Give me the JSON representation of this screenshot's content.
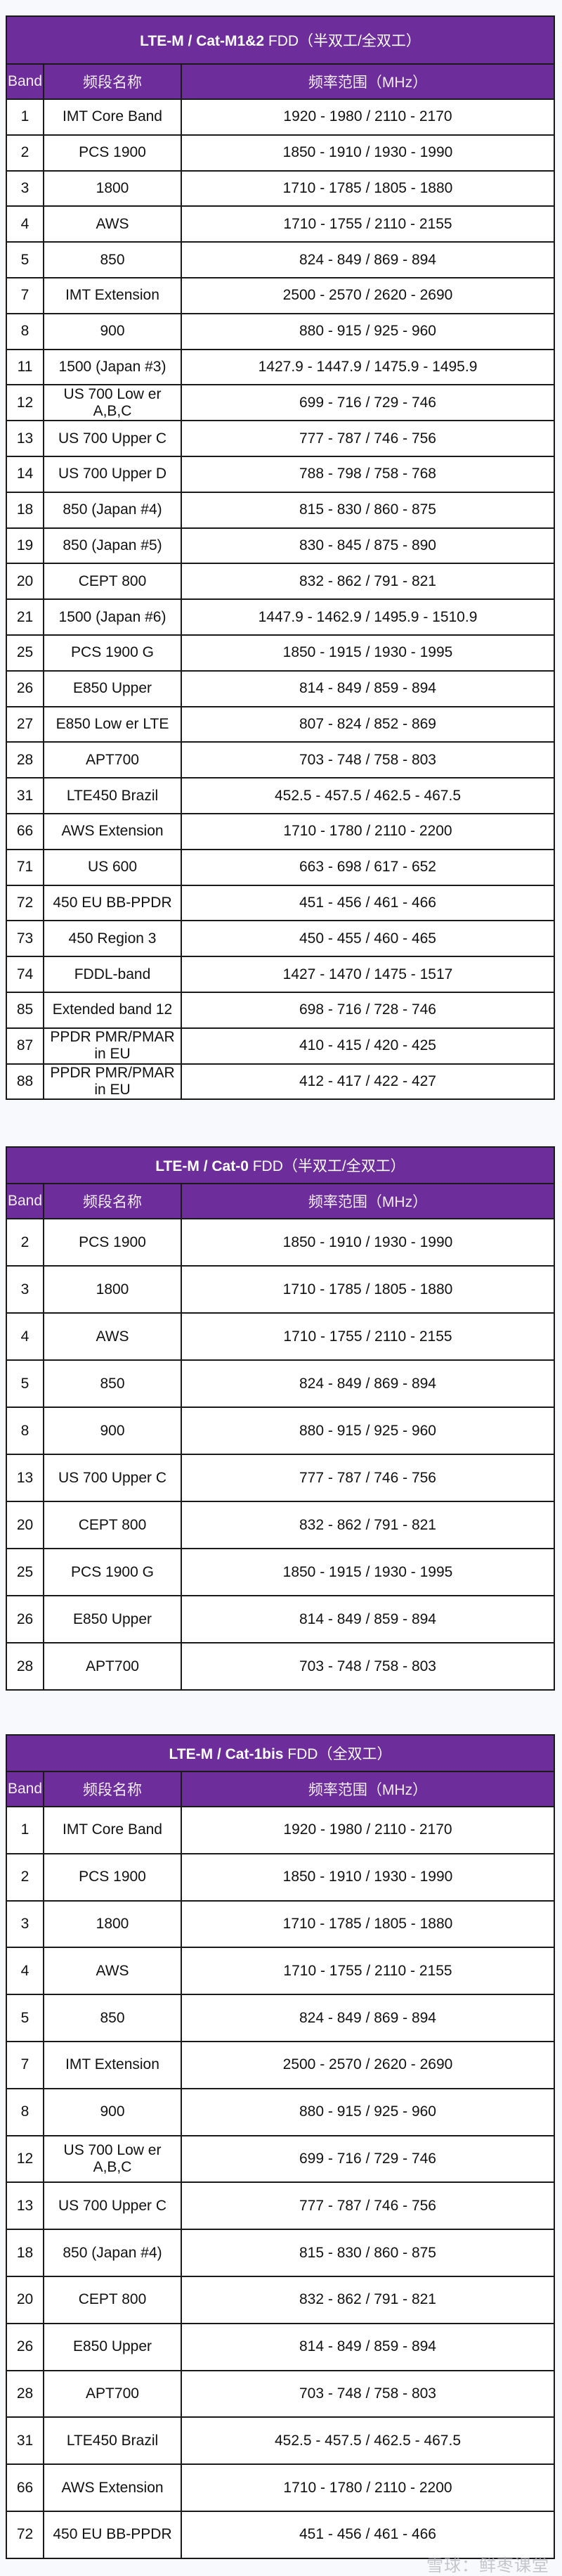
{
  "headers": {
    "band": "Band",
    "name": "频段名称",
    "range": "频率范围（MHz）"
  },
  "tables": [
    {
      "title_bold": "LTE-M / Cat-M1&2",
      "title_rest": " FDD（半双工/全双工）",
      "rows": [
        [
          "1",
          "IMT Core Band",
          "1920 - 1980 / 2110 - 2170"
        ],
        [
          "2",
          "PCS 1900",
          "1850 - 1910 / 1930 - 1990"
        ],
        [
          "3",
          "1800",
          "1710 - 1785 / 1805 - 1880"
        ],
        [
          "4",
          "AWS",
          "1710 - 1755 / 2110 - 2155"
        ],
        [
          "5",
          "850",
          "824 - 849 / 869 - 894"
        ],
        [
          "7",
          "IMT Extension",
          "2500 - 2570 / 2620 - 2690"
        ],
        [
          "8",
          "900",
          "880 - 915 / 925 - 960"
        ],
        [
          "11",
          "1500 (Japan #3)",
          "1427.9 - 1447.9 / 1475.9 - 1495.9"
        ],
        [
          "12",
          "US 700 Low er A,B,C",
          "699 - 716 / 729 - 746"
        ],
        [
          "13",
          "US 700 Upper C",
          "777 - 787 / 746 - 756"
        ],
        [
          "14",
          "US 700 Upper D",
          "788 - 798 / 758 - 768"
        ],
        [
          "18",
          "850 (Japan #4)",
          "815 - 830 / 860 - 875"
        ],
        [
          "19",
          "850 (Japan #5)",
          "830 - 845 / 875 - 890"
        ],
        [
          "20",
          "CEPT 800",
          "832 - 862 / 791 - 821"
        ],
        [
          "21",
          "1500 (Japan #6)",
          "1447.9 - 1462.9 / 1495.9 - 1510.9"
        ],
        [
          "25",
          "PCS 1900 G",
          "1850 - 1915 / 1930 - 1995"
        ],
        [
          "26",
          "E850 Upper",
          "814 - 849 / 859 - 894"
        ],
        [
          "27",
          "E850 Low er LTE",
          "807 - 824 / 852 - 869"
        ],
        [
          "28",
          "APT700",
          "703 - 748 / 758 - 803"
        ],
        [
          "31",
          "LTE450 Brazil",
          "452.5 - 457.5 / 462.5 - 467.5"
        ],
        [
          "66",
          "AWS Extension",
          "1710 - 1780 / 2110 - 2200"
        ],
        [
          "71",
          "US 600",
          "663 - 698 / 617 - 652"
        ],
        [
          "72",
          "450 EU BB-PPDR",
          "451 - 456 / 461 - 466"
        ],
        [
          "73",
          "450 Region 3",
          "450 - 455 / 460 - 465"
        ],
        [
          "74",
          "FDDL-band",
          "1427 - 1470 / 1475 - 1517"
        ],
        [
          "85",
          "Extended band 12",
          "698 - 716 / 728 - 746"
        ],
        [
          "87",
          "PPDR PMR/PMAR in EU",
          "410 - 415 / 420 - 425"
        ],
        [
          "88",
          "PPDR PMR/PMAR in EU",
          "412 - 417 / 422 - 427"
        ]
      ]
    },
    {
      "title_bold": "LTE-M / Cat-0",
      "title_rest": " FDD（半双工/全双工）",
      "rows": [
        [
          "2",
          "PCS 1900",
          "1850 - 1910 / 1930 - 1990"
        ],
        [
          "3",
          "1800",
          "1710 - 1785 / 1805 - 1880"
        ],
        [
          "4",
          "AWS",
          "1710 - 1755 / 2110 - 2155"
        ],
        [
          "5",
          "850",
          "824 - 849 / 869 - 894"
        ],
        [
          "8",
          "900",
          "880 - 915 / 925 - 960"
        ],
        [
          "13",
          "US 700 Upper C",
          "777 - 787 / 746 - 756"
        ],
        [
          "20",
          "CEPT 800",
          "832 - 862 / 791 - 821"
        ],
        [
          "25",
          "PCS 1900 G",
          "1850 - 1915 / 1930 - 1995"
        ],
        [
          "26",
          "E850 Upper",
          "814 - 849 / 859 - 894"
        ],
        [
          "28",
          "APT700",
          "703 - 748 / 758 - 803"
        ]
      ]
    },
    {
      "title_bold": "LTE-M / Cat-1bis",
      "title_rest": " FDD（全双工）",
      "rows": [
        [
          "1",
          "IMT Core Band",
          "1920 - 1980 / 2110 - 2170"
        ],
        [
          "2",
          "PCS 1900",
          "1850 - 1910 / 1930 - 1990"
        ],
        [
          "3",
          "1800",
          "1710 - 1785 / 1805 - 1880"
        ],
        [
          "4",
          "AWS",
          "1710 - 1755 / 2110 - 2155"
        ],
        [
          "5",
          "850",
          "824 - 849 / 869 - 894"
        ],
        [
          "7",
          "IMT Extension",
          "2500 - 2570 / 2620 - 2690"
        ],
        [
          "8",
          "900",
          "880 - 915 / 925 - 960"
        ],
        [
          "12",
          "US 700 Low er A,B,C",
          "699 - 716 / 729 - 746"
        ],
        [
          "13",
          "US 700 Upper C",
          "777 - 787 / 746 - 756"
        ],
        [
          "18",
          "850 (Japan #4)",
          "815 - 830 / 860 - 875"
        ],
        [
          "20",
          "CEPT 800",
          "832 - 862 / 791 - 821"
        ],
        [
          "26",
          "E850 Upper",
          "814 - 849 / 859 - 894"
        ],
        [
          "28",
          "APT700",
          "703 - 748 / 758 - 803"
        ],
        [
          "31",
          "LTE450 Brazil",
          "452.5 - 457.5 / 462.5 - 467.5"
        ],
        [
          "66",
          "AWS Extension",
          "1710 - 1780 / 2110 - 2200"
        ],
        [
          "72",
          "450 EU BB-PPDR",
          "451 - 456 / 461 - 466"
        ]
      ]
    }
  ],
  "watermark": "雪球：鲜枣课堂",
  "colors": {
    "header_bg": "#6d2e9b",
    "border": "#1a1a1a"
  }
}
